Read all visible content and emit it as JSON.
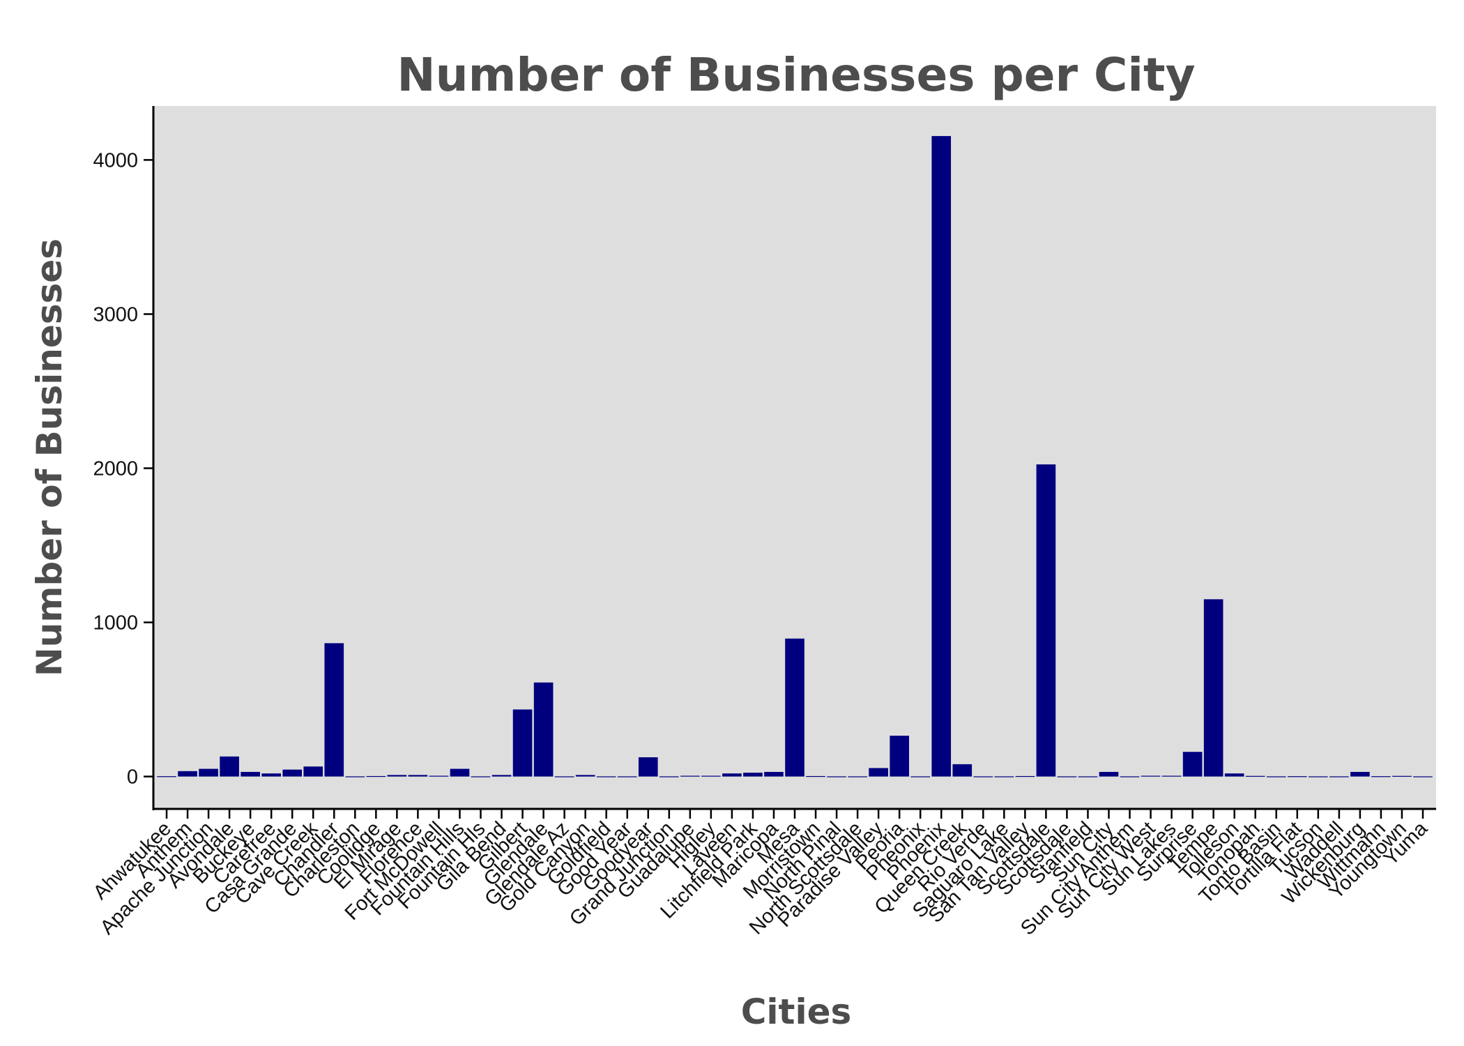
{
  "chart_data": {
    "type": "bar",
    "title": "Number of Businesses per City",
    "xlabel": "Cities",
    "ylabel": "Number of Businesses",
    "ylim": [
      -210,
      4350
    ],
    "yticks": [
      0,
      1000,
      2000,
      3000,
      4000
    ],
    "grid": false,
    "bar_color": "#00007f",
    "panel_color": "#dedede",
    "categories": [
      "Ahwatukee",
      "Anthem",
      "Apache Junction",
      "Avondale",
      "Buckeye",
      "Carefree",
      "Casa Grande",
      "Cave Creek",
      "Chandler",
      "Charleston",
      "Coolidge",
      "El Mirage",
      "Florence",
      "Fort McDowell",
      "Fountain Hills",
      "Fountain Hls",
      "Gila Bend",
      "Gilbert",
      "Glendale",
      "Glendale Az",
      "Gold Canyon",
      "Goldfield",
      "Good Year",
      "Goodyear",
      "Grand Junction",
      "Guadalupe",
      "Higley",
      "Laveen",
      "Litchfield Park",
      "Maricopa",
      "Mesa",
      "Morristown",
      "North Pinal",
      "North Scottsdale",
      "Paradise Valley",
      "Peoria",
      "Pheonix",
      "Phoenix",
      "Queen Creek",
      "Rio Verde",
      "Saguaro Lake",
      "San Tan Valley",
      "Scottsdale",
      "Scottsdale ",
      "Stanfield",
      "Sun City",
      "Sun City Anthem",
      "Sun City West",
      "Sun Lakes",
      "Surprise",
      "Tempe",
      "Tolleson",
      "Tonopah",
      "Tonto Basin",
      "Tortilla Flat",
      "Tucson",
      "Waddell",
      "Wickenburg",
      "Wittmann",
      "Youngtown",
      "Yuma"
    ],
    "values": [
      2,
      35,
      50,
      130,
      30,
      20,
      45,
      65,
      865,
      1,
      3,
      10,
      10,
      5,
      50,
      1,
      10,
      435,
      610,
      1,
      10,
      1,
      1,
      125,
      1,
      5,
      5,
      20,
      25,
      30,
      895,
      3,
      1,
      1,
      55,
      265,
      1,
      4155,
      80,
      1,
      1,
      3,
      2025,
      1,
      1,
      30,
      1,
      5,
      5,
      160,
      1150,
      20,
      4,
      1,
      2,
      1,
      1,
      30,
      2,
      4,
      1
    ]
  }
}
